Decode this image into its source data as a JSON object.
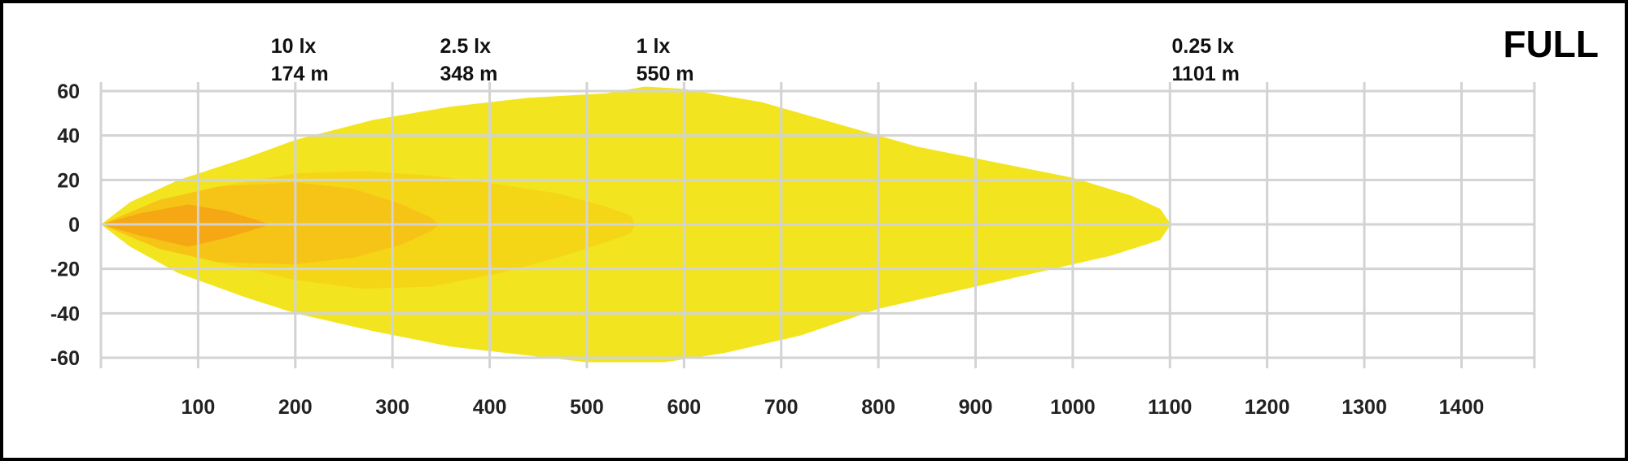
{
  "chart_data": {
    "type": "area",
    "mode_label": "FULL",
    "xlabel": "",
    "ylabel": "",
    "xlim": [
      0,
      1475
    ],
    "ylim": [
      -60,
      60
    ],
    "x_ticks": [
      100,
      200,
      300,
      400,
      500,
      600,
      700,
      800,
      900,
      1000,
      1100,
      1200,
      1300,
      1400
    ],
    "y_ticks": [
      60,
      40,
      20,
      0,
      -20,
      -40,
      -60
    ],
    "grid": true,
    "series": [
      {
        "lux_label": "0.25 lx",
        "distance_label": "1101 m",
        "range": 1101,
        "color": "#F2E520",
        "upper": [
          [
            0,
            0
          ],
          [
            30,
            10
          ],
          [
            80,
            20
          ],
          [
            150,
            30
          ],
          [
            200,
            38
          ],
          [
            280,
            47
          ],
          [
            360,
            53
          ],
          [
            440,
            57
          ],
          [
            520,
            59
          ],
          [
            560,
            62
          ],
          [
            600,
            61
          ],
          [
            680,
            55
          ],
          [
            760,
            45
          ],
          [
            840,
            35
          ],
          [
            920,
            28
          ],
          [
            1000,
            21
          ],
          [
            1060,
            13
          ],
          [
            1090,
            7
          ],
          [
            1101,
            0
          ]
        ],
        "lower": [
          [
            0,
            0
          ],
          [
            30,
            -10
          ],
          [
            80,
            -22
          ],
          [
            150,
            -33
          ],
          [
            200,
            -40
          ],
          [
            280,
            -48
          ],
          [
            360,
            -55
          ],
          [
            440,
            -59
          ],
          [
            500,
            -62
          ],
          [
            580,
            -62
          ],
          [
            640,
            -58
          ],
          [
            720,
            -50
          ],
          [
            800,
            -38
          ],
          [
            880,
            -30
          ],
          [
            960,
            -22
          ],
          [
            1040,
            -14
          ],
          [
            1090,
            -7
          ],
          [
            1101,
            0
          ]
        ]
      },
      {
        "lux_label": "1 lx",
        "distance_label": "550 m",
        "range": 550,
        "color": "#F5D617",
        "upper": [
          [
            0,
            0
          ],
          [
            50,
            8
          ],
          [
            120,
            17
          ],
          [
            200,
            23
          ],
          [
            270,
            24
          ],
          [
            340,
            22
          ],
          [
            410,
            18
          ],
          [
            470,
            14
          ],
          [
            520,
            8
          ],
          [
            545,
            4
          ],
          [
            550,
            0
          ]
        ],
        "lower": [
          [
            0,
            0
          ],
          [
            50,
            -8
          ],
          [
            120,
            -17
          ],
          [
            200,
            -25
          ],
          [
            270,
            -29
          ],
          [
            340,
            -28
          ],
          [
            410,
            -22
          ],
          [
            470,
            -15
          ],
          [
            520,
            -8
          ],
          [
            545,
            -4
          ],
          [
            550,
            0
          ]
        ]
      },
      {
        "lux_label": "2.5 lx",
        "distance_label": "348 m",
        "range": 348,
        "color": "#F6C416",
        "upper": [
          [
            0,
            0
          ],
          [
            60,
            11
          ],
          [
            120,
            17
          ],
          [
            200,
            19
          ],
          [
            260,
            16
          ],
          [
            310,
            9
          ],
          [
            340,
            3
          ],
          [
            348,
            0
          ]
        ],
        "lower": [
          [
            0,
            0
          ],
          [
            60,
            -11
          ],
          [
            120,
            -17
          ],
          [
            200,
            -18
          ],
          [
            260,
            -15
          ],
          [
            310,
            -9
          ],
          [
            340,
            -3
          ],
          [
            348,
            0
          ]
        ]
      },
      {
        "lux_label": "10 lx",
        "distance_label": "174 m",
        "range": 174,
        "color": "#F5A814",
        "upper": [
          [
            0,
            0
          ],
          [
            40,
            5
          ],
          [
            90,
            9
          ],
          [
            130,
            6
          ],
          [
            160,
            2
          ],
          [
            174,
            0
          ]
        ],
        "lower": [
          [
            0,
            0
          ],
          [
            40,
            -5
          ],
          [
            90,
            -10
          ],
          [
            130,
            -6
          ],
          [
            160,
            -2
          ],
          [
            174,
            0
          ]
        ]
      }
    ],
    "annotations_order": [
      3,
      2,
      1,
      0
    ]
  }
}
